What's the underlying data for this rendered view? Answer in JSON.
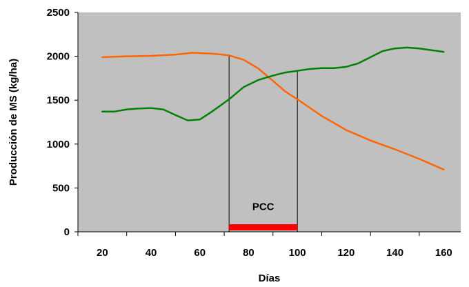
{
  "chart_data": {
    "type": "line",
    "xlabel": "Días",
    "ylabel": "Producción de MS (kg/ha)",
    "xlim": [
      10,
      167
    ],
    "ylim": [
      0,
      2500
    ],
    "x_ticks": [
      20,
      40,
      60,
      80,
      100,
      120,
      140,
      160
    ],
    "y_ticks": [
      0,
      500,
      1000,
      1500,
      2000,
      2500
    ],
    "grid": false,
    "background": "#c0c0c0",
    "series": [
      {
        "color": "#ff6600",
        "x": [
          20,
          30,
          40,
          50,
          57,
          65,
          72,
          78,
          84,
          90,
          95,
          100,
          110,
          120,
          130,
          140,
          150,
          160
        ],
        "y": [
          1990,
          2000,
          2005,
          2020,
          2040,
          2030,
          2010,
          1960,
          1860,
          1720,
          1600,
          1510,
          1320,
          1160,
          1040,
          940,
          830,
          710
        ]
      },
      {
        "color": "#008000",
        "x": [
          20,
          25,
          30,
          35,
          40,
          45,
          50,
          55,
          60,
          65,
          72,
          78,
          84,
          90,
          95,
          100,
          105,
          110,
          115,
          120,
          125,
          130,
          135,
          140,
          145,
          150,
          155,
          160
        ],
        "y": [
          1370,
          1370,
          1395,
          1405,
          1410,
          1395,
          1330,
          1270,
          1280,
          1370,
          1510,
          1650,
          1730,
          1780,
          1815,
          1835,
          1855,
          1865,
          1865,
          1880,
          1920,
          1990,
          2060,
          2090,
          2100,
          2090,
          2070,
          2050
        ]
      }
    ],
    "annotations": [
      {
        "label": "PCC",
        "x_start": 72,
        "x_end": 100,
        "y": 500
      }
    ],
    "pcc_bar": {
      "x_start": 72,
      "x_end": 100,
      "color": "#ff0000"
    }
  }
}
